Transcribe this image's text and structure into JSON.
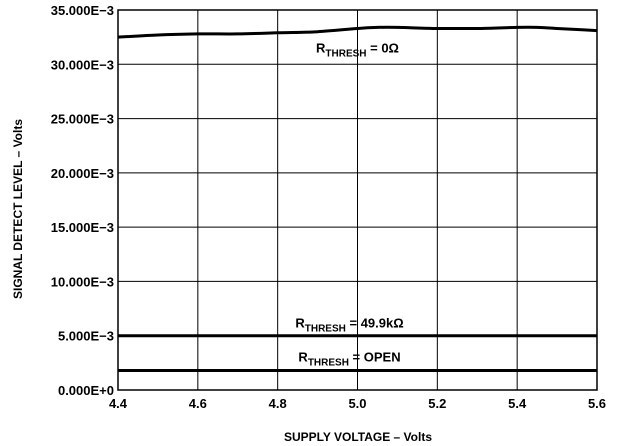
{
  "chart_data": {
    "type": "line",
    "xlabel": "SUPPLY VOLTAGE – Volts",
    "ylabel": "SIGNAL DETECT LEVEL – Volts",
    "xlim": [
      4.4,
      5.6
    ],
    "ylim": [
      0,
      0.035
    ],
    "grid": true,
    "x_ticks": [
      4.4,
      4.6,
      4.8,
      5.0,
      5.2,
      5.4,
      5.6
    ],
    "x_tick_labels": [
      "4.4",
      "4.6",
      "4.8",
      "5.0",
      "5.2",
      "5.4",
      "5.6"
    ],
    "y_ticks": [
      0,
      0.005,
      0.01,
      0.015,
      0.02,
      0.025,
      0.03,
      0.035
    ],
    "y_tick_labels": [
      "0.000E+0",
      "5.000E−3",
      "10.000E−3",
      "15.000E−3",
      "20.000E−3",
      "25.000E−3",
      "30.000E−3",
      "35.000E−3"
    ],
    "series": [
      {
        "label_main": "R",
        "label_sub": "THRESH",
        "label_rest": " = 0Ω",
        "x": [
          4.4,
          4.5,
          4.6,
          4.7,
          4.8,
          4.9,
          5.0,
          5.05,
          5.1,
          5.2,
          5.3,
          5.4,
          5.45,
          5.5,
          5.55,
          5.6
        ],
        "y": [
          0.0325,
          0.0327,
          0.0328,
          0.0328,
          0.0329,
          0.033,
          0.0333,
          0.0334,
          0.0334,
          0.0333,
          0.0333,
          0.0334,
          0.0334,
          0.0333,
          0.0332,
          0.0331
        ]
      },
      {
        "label_main": "R",
        "label_sub": "THRESH",
        "label_rest": " = 49.9kΩ",
        "x": [
          4.4,
          5.6
        ],
        "y": [
          0.005,
          0.005
        ]
      },
      {
        "label_main": "R",
        "label_sub": "THRESH",
        "label_rest": " = OPEN",
        "x": [
          4.4,
          5.6
        ],
        "y": [
          0.0018,
          0.0018
        ]
      }
    ]
  }
}
